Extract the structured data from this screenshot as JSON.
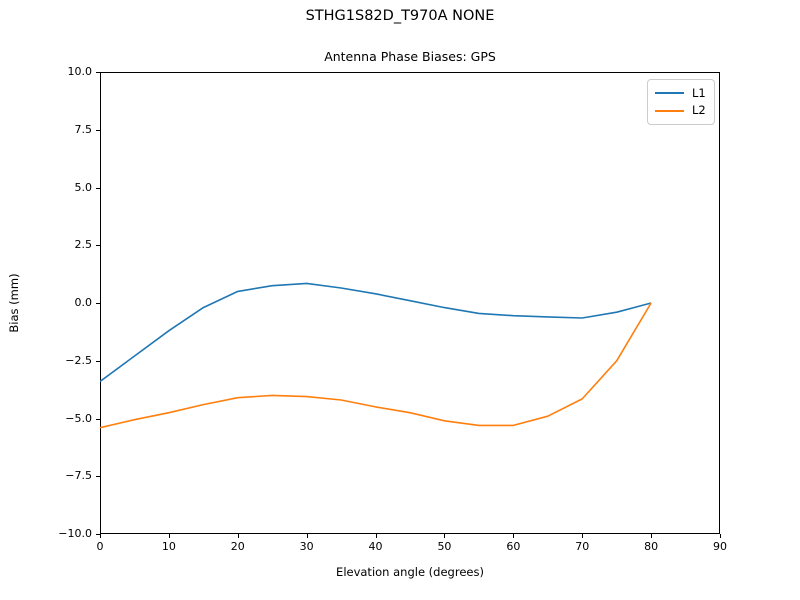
{
  "figure": {
    "suptitle": "STHG1S82D_T970A NONE"
  },
  "chart_data": {
    "type": "line",
    "title": "Antenna Phase Biases: GPS",
    "xlabel": "Elevation angle (degrees)",
    "ylabel": "Bias (mm)",
    "xlim": [
      0,
      90
    ],
    "ylim": [
      -10,
      10
    ],
    "xticks": [
      0,
      10,
      20,
      30,
      40,
      50,
      60,
      70,
      80,
      90
    ],
    "yticks": [
      10.0,
      7.5,
      5.0,
      2.5,
      0.0,
      -2.5,
      -5.0,
      -7.5,
      -10.0
    ],
    "grid": false,
    "legend_position": "upper right",
    "x": [
      0,
      5,
      10,
      15,
      20,
      25,
      30,
      35,
      40,
      45,
      50,
      55,
      60,
      65,
      70,
      75,
      80
    ],
    "series": [
      {
        "name": "L1",
        "color": "#1f77b4",
        "values": [
          -3.4,
          -2.3,
          -1.2,
          -0.2,
          0.5,
          0.75,
          0.85,
          0.65,
          0.4,
          0.1,
          -0.2,
          -0.45,
          -0.55,
          -0.6,
          -0.65,
          -0.4,
          0.0
        ]
      },
      {
        "name": "L2",
        "color": "#ff7f0e",
        "values": [
          -5.4,
          -5.05,
          -4.75,
          -4.4,
          -4.1,
          -4.0,
          -4.05,
          -4.2,
          -4.5,
          -4.75,
          -5.1,
          -5.3,
          -5.3,
          -4.9,
          -4.15,
          -2.5,
          0.0
        ]
      }
    ]
  }
}
